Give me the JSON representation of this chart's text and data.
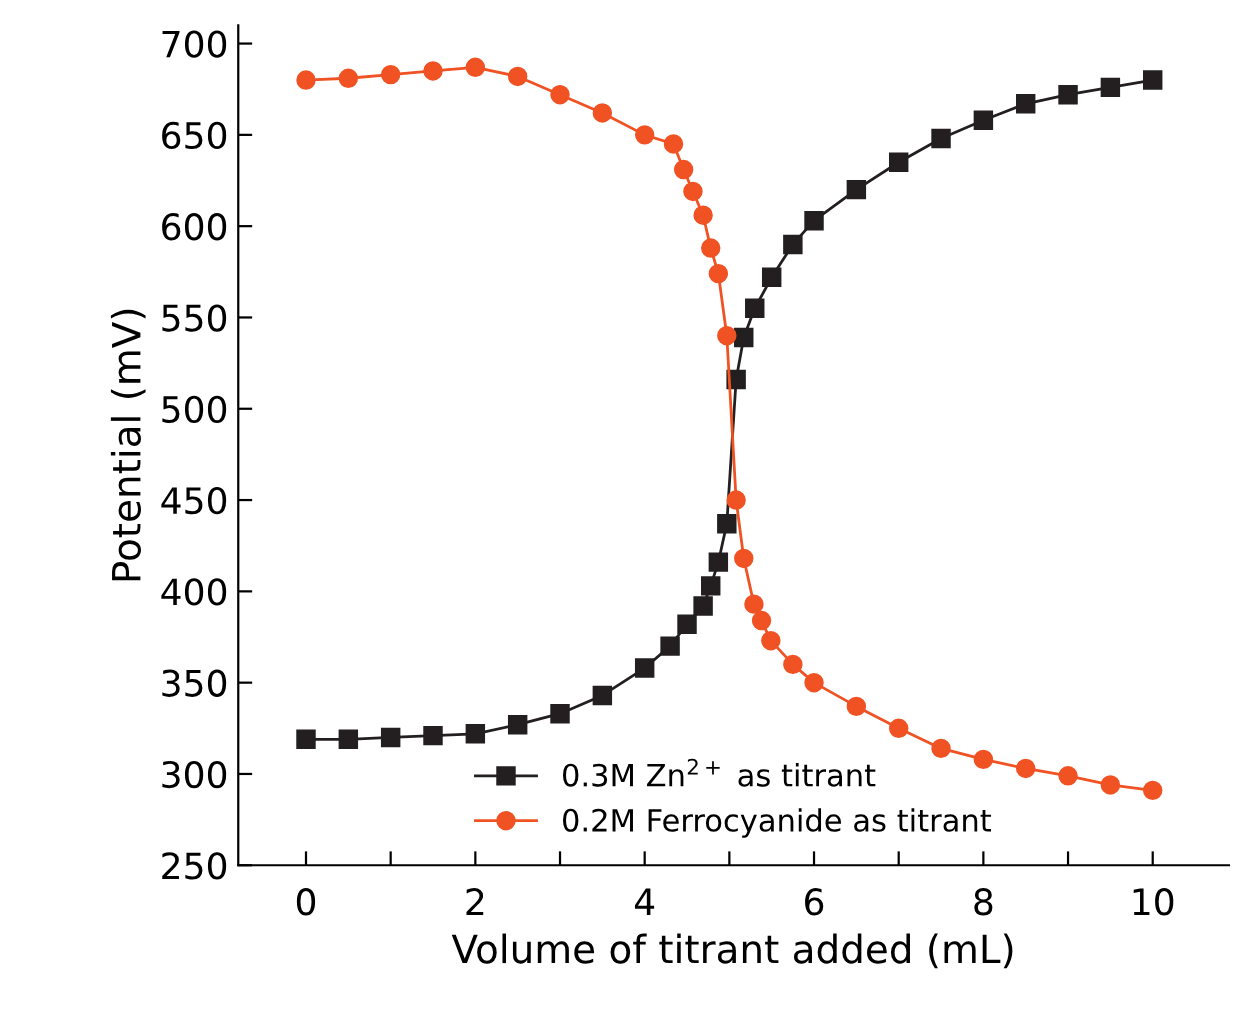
{
  "chart_data": {
    "type": "line",
    "xlabel": "Volume of titrant added (mL)",
    "ylabel": "Potential (mV)",
    "xlim": [
      -0.8,
      10.9
    ],
    "ylim": [
      250,
      710
    ],
    "xticks": [
      0,
      {
        "value": 1,
        "label": null
      },
      2,
      {
        "value": 3,
        "label": null
      },
      4,
      {
        "value": 5,
        "label": null
      },
      6,
      {
        "value": 7,
        "label": null
      },
      8,
      {
        "value": 9,
        "label": null
      },
      10
    ],
    "yticks": [
      250,
      300,
      350,
      400,
      450,
      500,
      550,
      600,
      650,
      700
    ],
    "grid": false,
    "legend": "bottom",
    "line_style": "solid",
    "series": [
      {
        "name": "0.3M Zn$^{2+}$ as titrant",
        "color": "#231f20",
        "marker": "square",
        "x": [
          0,
          0.5,
          1,
          1.5,
          2,
          2.5,
          3,
          3.5,
          4,
          4.3,
          4.5,
          4.69,
          4.78,
          4.87,
          4.97,
          5.08,
          5.17,
          5.3,
          5.5,
          5.75,
          6,
          6.5,
          7,
          7.5,
          8,
          8.5,
          9,
          9.5,
          10
        ],
        "values": [
          319,
          319,
          320,
          321,
          322,
          327,
          333,
          343,
          358,
          370,
          382,
          392,
          403,
          416,
          437,
          516,
          539,
          555,
          572,
          590,
          603,
          620,
          635,
          648,
          658,
          667,
          672,
          676,
          680
        ]
      },
      {
        "name": "0.2M Ferrocyanide as titrant",
        "color": "#f05223",
        "marker": "circle",
        "x": [
          0,
          0.5,
          1,
          1.5,
          2,
          2.5,
          3,
          3.5,
          4,
          4.34,
          4.46,
          4.57,
          4.69,
          4.78,
          4.87,
          4.97,
          5.08,
          5.17,
          5.29,
          5.38,
          5.49,
          5.75,
          6,
          6.5,
          7,
          7.5,
          8,
          8.5,
          9,
          9.5,
          10
        ],
        "values": [
          680,
          681,
          683,
          685,
          687,
          682,
          672,
          662,
          650,
          645,
          631,
          619,
          606,
          588,
          574,
          540,
          450,
          418,
          393,
          384,
          373,
          360,
          350,
          337,
          325,
          314,
          308,
          303,
          299,
          294,
          291
        ]
      }
    ]
  }
}
